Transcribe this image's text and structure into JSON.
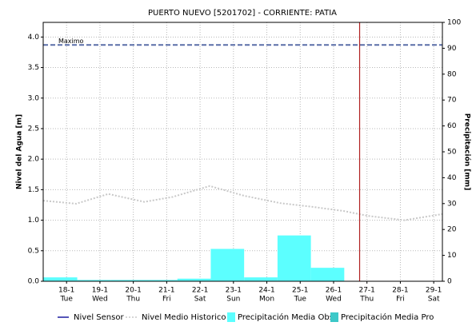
{
  "chart_data": {
    "type": "line",
    "title": "PUERTO NUEVO [5201702] - CORRIENTE: PATIA",
    "ylabel": "Nivel del Agua [m]",
    "y2label": "Precipitación [mm]",
    "xlim": [
      17.3,
      29.26
    ],
    "xticks": [
      {
        "value": 18,
        "label": "18-1"
      },
      {
        "value": 19,
        "label": "19-1"
      },
      {
        "value": 20,
        "label": "20-1"
      },
      {
        "value": 21,
        "label": "21-1"
      },
      {
        "value": 22,
        "label": "22-1"
      },
      {
        "value": 23,
        "label": "23-1"
      },
      {
        "value": 24,
        "label": "24-1"
      },
      {
        "value": 25,
        "label": "25-1"
      },
      {
        "value": 26,
        "label": "26-1"
      },
      {
        "value": 27,
        "label": "27-1"
      },
      {
        "value": 28,
        "label": "28-1"
      },
      {
        "value": 29,
        "label": "29-1"
      }
    ],
    "xtick_days": [
      "Tue",
      "Wed",
      "Thu",
      "Fri",
      "Sat",
      "Sun",
      "Mon",
      "Tue",
      "Wed",
      "Thu",
      "Fri",
      "Sat"
    ],
    "ylim": [
      0,
      4.24
    ],
    "yticks": [
      {
        "value": 0,
        "label": "0.0"
      },
      0.5,
      {
        "value": 1,
        "label": "1.0"
      },
      1.5,
      {
        "value": 2,
        "label": "2.0"
      },
      2.5,
      {
        "value": 3,
        "label": "3.0"
      },
      3.5,
      {
        "value": 4,
        "label": "4.0"
      }
    ],
    "y2lim": [
      0,
      100
    ],
    "y2ticks": [
      0,
      10,
      20,
      30,
      40,
      50,
      60,
      70,
      80,
      90,
      100
    ],
    "grid": true,
    "series": [
      {
        "name": "Nivel Sensor",
        "type": "line",
        "color": "#1c1ca0",
        "x": [],
        "values": []
      },
      {
        "name": "Nivel Medio Historico",
        "type": "line",
        "dashed": true,
        "color": "#c8c8c8",
        "x": [
          17.3,
          18.29,
          19.25,
          20.33,
          21.17,
          22.29,
          23.32,
          24.4,
          25.35,
          26.31,
          27.04,
          28.12,
          29.26
        ],
        "values": [
          1.32,
          1.27,
          1.43,
          1.3,
          1.38,
          1.56,
          1.4,
          1.28,
          1.22,
          1.15,
          1.07,
          1.0,
          1.1
        ]
      },
      {
        "name": "Precipitación Media Obs",
        "type": "bar",
        "axis": "y2",
        "color": "#5cffff",
        "bins": [
          17.3,
          18.32,
          19.32,
          20.32,
          21.32,
          22.32,
          23.32,
          24.32,
          25.32,
          26.32
        ],
        "values": [
          1.5,
          0.5,
          0.5,
          0.5,
          1.0,
          12.5,
          1.5,
          17.7,
          5.2
        ]
      },
      {
        "name": "Precipitación Media Pro",
        "type": "bar",
        "axis": "y2",
        "color": "#3cc8c8",
        "bins": [],
        "values": []
      }
    ],
    "max_line": {
      "label": "Maximo",
      "value": 3.87,
      "color": "#5a6ea8"
    },
    "now_line": {
      "value": 26.78,
      "color": "#b02020"
    }
  }
}
